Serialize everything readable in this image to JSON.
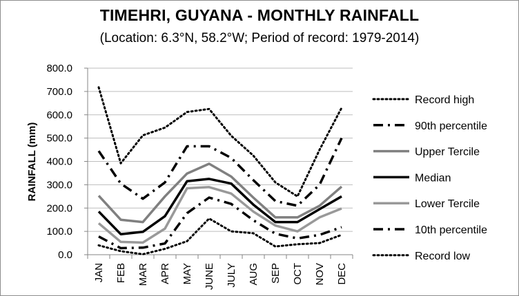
{
  "chart_data": {
    "type": "line",
    "title": "TIMEHRI, GUYANA - MONTHLY RAINFALL",
    "subtitle": "(Location: 6.3°N, 58.2°W; Period of record: 1979-2014)",
    "ylabel": "RAINFALL (mm)",
    "xlabel": "",
    "ylim": [
      0,
      800
    ],
    "yticks": [
      "0.0",
      "100.0",
      "200.0",
      "300.0",
      "400.0",
      "500.0",
      "600.0",
      "700.0",
      "800.0"
    ],
    "grid": true,
    "legend_position": "right",
    "categories": [
      "JAN",
      "FEB",
      "MAR",
      "APR",
      "MAY",
      "JUNE",
      "JULY",
      "AUG",
      "SEP",
      "OCT",
      "NOV",
      "DEC"
    ],
    "series": [
      {
        "name": "Record high",
        "style": "dotted",
        "color": "#000000",
        "values": [
          718,
          392,
          512,
          545,
          612,
          625,
          510,
          425,
          310,
          250,
          450,
          630
        ]
      },
      {
        "name": "90th percentile",
        "style": "dashdot",
        "color": "#000000",
        "values": [
          445,
          305,
          240,
          310,
          465,
          465,
          415,
          320,
          230,
          210,
          300,
          500
        ]
      },
      {
        "name": "Upper Tercile",
        "style": "solid-gray",
        "color": "#808080",
        "values": [
          253,
          150,
          140,
          250,
          348,
          390,
          335,
          245,
          160,
          160,
          210,
          292
        ]
      },
      {
        "name": "Median",
        "style": "solid-black",
        "color": "#000000",
        "values": [
          185,
          88,
          98,
          165,
          315,
          325,
          305,
          215,
          140,
          140,
          195,
          250
        ]
      },
      {
        "name": "Lower Tercile",
        "style": "solid-gray",
        "color": "#999999",
        "values": [
          135,
          55,
          52,
          112,
          285,
          290,
          262,
          185,
          125,
          100,
          160,
          198
        ]
      },
      {
        "name": "10th percentile",
        "style": "dashdot",
        "color": "#000000",
        "values": [
          78,
          28,
          30,
          48,
          178,
          245,
          218,
          148,
          90,
          70,
          85,
          118
        ]
      },
      {
        "name": "Record low",
        "style": "dotted",
        "color": "#000000",
        "values": [
          40,
          15,
          2,
          25,
          58,
          155,
          100,
          92,
          35,
          45,
          50,
          85
        ]
      }
    ]
  }
}
